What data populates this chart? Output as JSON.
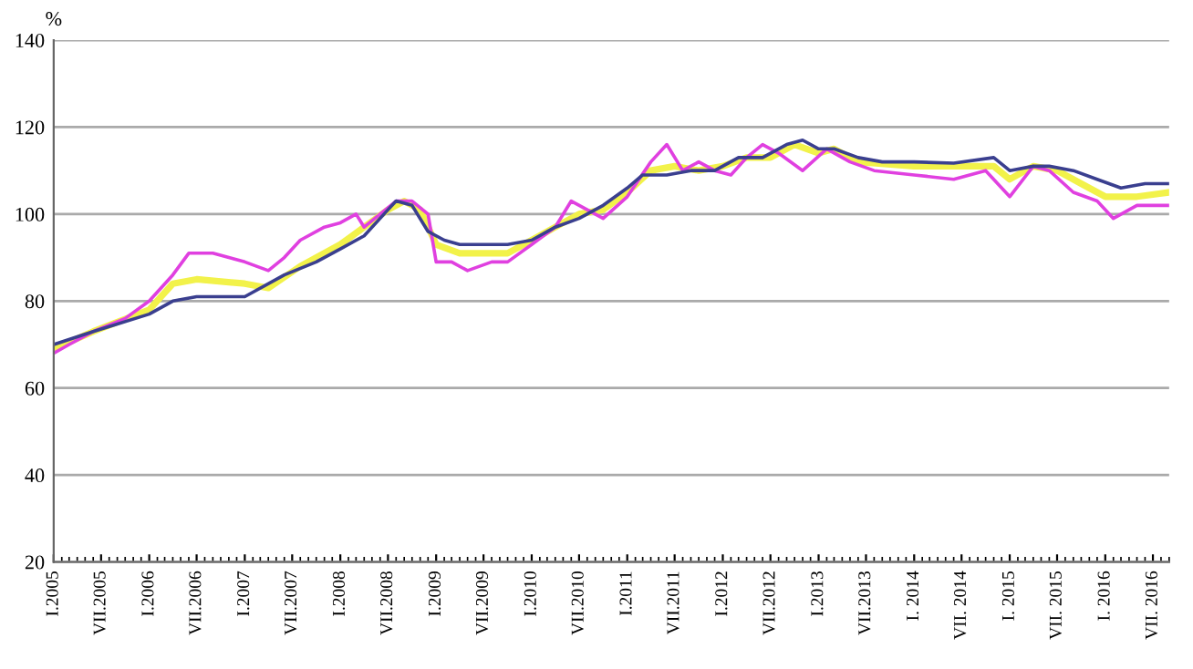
{
  "chart_data": {
    "type": "line",
    "ylabel": "%",
    "ylim": [
      20,
      140
    ],
    "yticks": [
      20,
      40,
      60,
      80,
      100,
      120,
      140
    ],
    "xlim": [
      "2005-01",
      "2016-09"
    ],
    "xticks": [
      {
        "value": "2005-01",
        "label": "I.2005"
      },
      {
        "value": "2005-07",
        "label": "VII.2005"
      },
      {
        "value": "2006-01",
        "label": "I.2006"
      },
      {
        "value": "2006-07",
        "label": "VII.2006"
      },
      {
        "value": "2007-01",
        "label": "I.2007"
      },
      {
        "value": "2007-07",
        "label": "VII.2007"
      },
      {
        "value": "2008-01",
        "label": "I.2008"
      },
      {
        "value": "2008-07",
        "label": "VII.2008"
      },
      {
        "value": "2009-01",
        "label": "I.2009"
      },
      {
        "value": "2009-07",
        "label": "VII.2009"
      },
      {
        "value": "2010-01",
        "label": "I.2010"
      },
      {
        "value": "2010-07",
        "label": "VII.2010"
      },
      {
        "value": "2011-01",
        "label": "I.2011"
      },
      {
        "value": "2011-07",
        "label": "VII.2011"
      },
      {
        "value": "2012-01",
        "label": "I.2012"
      },
      {
        "value": "2012-07",
        "label": "VII.2012"
      },
      {
        "value": "2013-01",
        "label": "I.2013"
      },
      {
        "value": "2013-07",
        "label": "VII.2013"
      },
      {
        "value": "2014-01",
        "label": "I. 2014"
      },
      {
        "value": "2014-07",
        "label": "VII. 2014"
      },
      {
        "value": "2015-01",
        "label": "I. 2015"
      },
      {
        "value": "2015-07",
        "label": "VII. 2015"
      },
      {
        "value": "2016-01",
        "label": "I. 2016"
      },
      {
        "value": "2016-07",
        "label": "VII. 2016"
      }
    ],
    "grid": "y",
    "legend": false,
    "marker": "none",
    "line_style": "solid",
    "series": [
      {
        "color": "#f2f24a",
        "x": [
          "2005-01",
          "2005-06",
          "2006-01",
          "2006-04",
          "2006-07",
          "2007-01",
          "2007-04",
          "2007-08",
          "2008-01",
          "2008-04",
          "2008-07",
          "2008-09",
          "2008-11",
          "2009-01",
          "2009-04",
          "2009-07",
          "2009-10",
          "2010-01",
          "2010-04",
          "2010-07",
          "2010-10",
          "2011-01",
          "2011-04",
          "2011-07",
          "2011-10",
          "2012-01",
          "2012-04",
          "2012-07",
          "2012-10",
          "2013-01",
          "2013-03",
          "2013-06",
          "2014-01",
          "2014-06",
          "2014-11",
          "2015-01",
          "2015-04",
          "2015-07",
          "2015-10",
          "2016-01",
          "2016-05",
          "2016-09"
        ],
        "values": [
          69,
          73,
          78,
          84,
          85,
          84,
          83,
          88,
          93,
          97,
          101,
          103,
          101,
          93,
          91,
          91,
          91,
          94,
          97,
          100,
          101,
          105,
          110,
          111,
          110,
          111,
          113,
          113,
          116,
          114,
          115,
          112,
          111,
          111,
          111,
          108,
          111,
          110,
          107,
          104,
          104,
          105
        ]
      },
      {
        "color": "#e040e0",
        "x": [
          "2005-01",
          "2005-03",
          "2005-06",
          "2005-10",
          "2006-01",
          "2006-04",
          "2006-06",
          "2006-09",
          "2006-11",
          "2007-01",
          "2007-04",
          "2007-06",
          "2007-08",
          "2007-11",
          "2008-01",
          "2008-03",
          "2008-04",
          "2008-06",
          "2008-08",
          "2008-10",
          "2008-12",
          "2009-01",
          "2009-03",
          "2009-05",
          "2009-08",
          "2009-10",
          "2010-01",
          "2010-04",
          "2010-06",
          "2010-08",
          "2010-10",
          "2011-01",
          "2011-04",
          "2011-06",
          "2011-08",
          "2011-10",
          "2011-12",
          "2012-02",
          "2012-04",
          "2012-06",
          "2012-08",
          "2012-11",
          "2013-02",
          "2013-05",
          "2013-08",
          "2014-01",
          "2014-06",
          "2014-10",
          "2015-01",
          "2015-04",
          "2015-06",
          "2015-09",
          "2015-12",
          "2016-02",
          "2016-05",
          "2016-09"
        ],
        "values": [
          68,
          70,
          73,
          76,
          80,
          86,
          91,
          91,
          90,
          89,
          87,
          90,
          94,
          97,
          98,
          100,
          97,
          100,
          103,
          103,
          100,
          89,
          89,
          87,
          89,
          89,
          93,
          97,
          103,
          101,
          99,
          104,
          112,
          116,
          110,
          112,
          110,
          109,
          113,
          116,
          114,
          110,
          115,
          112,
          110,
          109,
          108,
          110,
          104,
          111,
          110,
          105,
          103,
          99,
          102,
          102
        ]
      },
      {
        "color": "#3a3f8f",
        "x": [
          "2005-01",
          "2005-06",
          "2006-01",
          "2006-04",
          "2006-07",
          "2007-01",
          "2007-06",
          "2007-10",
          "2008-01",
          "2008-04",
          "2008-07",
          "2008-08",
          "2008-10",
          "2008-12",
          "2009-02",
          "2009-04",
          "2009-07",
          "2009-10",
          "2010-01",
          "2010-04",
          "2010-07",
          "2010-10",
          "2011-01",
          "2011-03",
          "2011-06",
          "2011-09",
          "2011-12",
          "2012-03",
          "2012-06",
          "2012-09",
          "2012-11",
          "2013-01",
          "2013-03",
          "2013-06",
          "2013-09",
          "2014-01",
          "2014-06",
          "2014-11",
          "2015-01",
          "2015-04",
          "2015-06",
          "2015-09",
          "2015-12",
          "2016-03",
          "2016-06",
          "2016-09"
        ],
        "values": [
          70,
          73,
          77,
          80,
          81,
          81,
          86,
          89,
          92,
          95,
          101,
          103,
          102,
          96,
          94,
          93,
          93,
          93,
          94,
          97,
          99,
          102,
          106,
          109,
          109,
          110,
          110,
          113,
          113,
          116,
          117,
          115,
          115,
          113,
          112,
          112,
          111.7,
          113,
          110,
          111,
          111,
          110,
          108,
          106,
          107,
          107
        ]
      }
    ]
  }
}
